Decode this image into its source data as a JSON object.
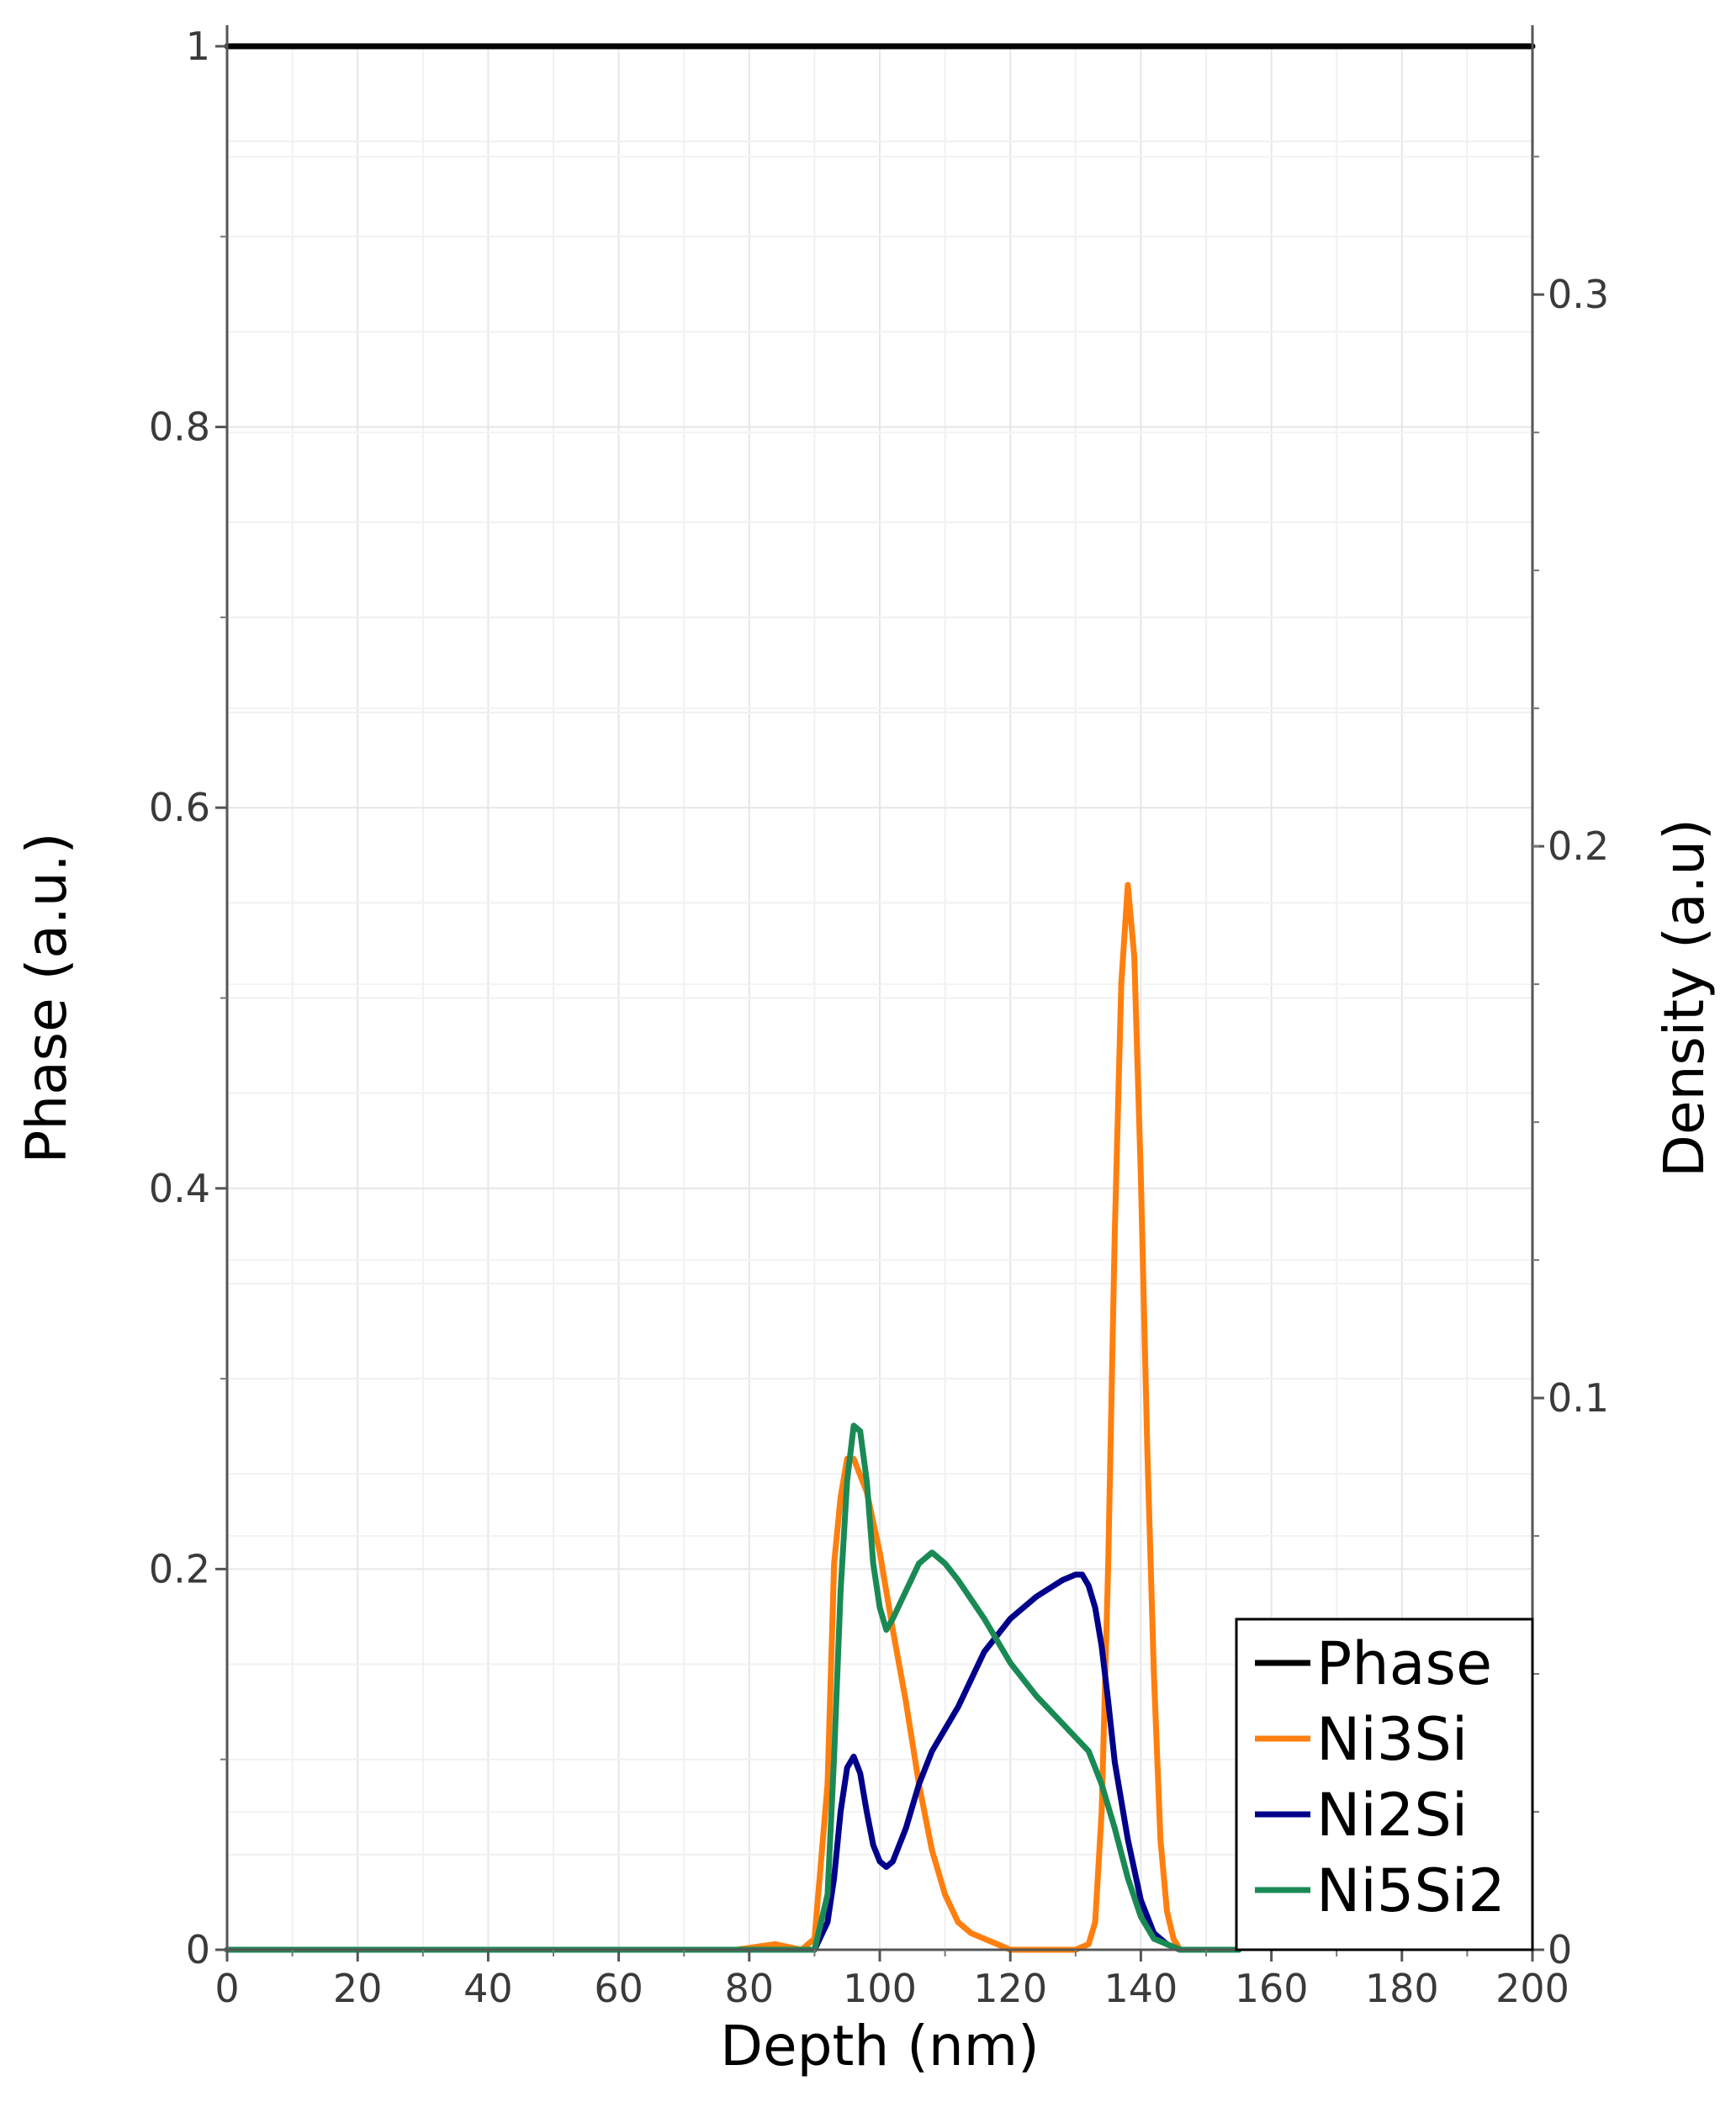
{
  "chart_data": {
    "type": "line",
    "xlabel": "Depth (nm)",
    "ylabel_left": "Phase (a.u.)",
    "ylabel_right": "Density (a.u)",
    "xlim": [
      0,
      200
    ],
    "ylim_left": [
      0,
      1
    ],
    "ylim_right": [
      0,
      0.345
    ],
    "x_ticks": [
      "0",
      "20",
      "40",
      "60",
      "80",
      "100",
      "120",
      "140",
      "160",
      "180",
      "200"
    ],
    "y_left_ticks": [
      "0",
      "0.2",
      "0.4",
      "0.6",
      "0.8",
      "1"
    ],
    "y_right_ticks": [
      "0",
      "0.1",
      "0.2",
      "0.3"
    ],
    "grid": true,
    "legend_position": "bottom-right",
    "series": [
      {
        "name": "Phase",
        "axis": "left",
        "color": "#000000",
        "x": [
          0,
          200
        ],
        "y": [
          1.0,
          1.0
        ]
      },
      {
        "name": "Ni3Si",
        "axis": "right",
        "color": "#ff7f0e",
        "x": [
          0,
          78,
          84,
          88,
          90,
          92,
          93,
          94,
          95,
          96,
          97,
          98,
          100,
          102,
          104,
          106,
          108,
          110,
          112,
          114,
          116,
          118,
          120,
          125,
          130,
          132,
          133,
          134,
          135,
          136,
          137,
          138,
          139,
          140,
          141,
          142,
          143,
          144,
          145,
          146,
          155
        ],
        "y": [
          0,
          0,
          0.001,
          0,
          0.002,
          0.03,
          0.07,
          0.082,
          0.089,
          0.089,
          0.086,
          0.083,
          0.072,
          0.058,
          0.045,
          0.03,
          0.018,
          0.01,
          0.005,
          0.003,
          0.002,
          0.001,
          0,
          0,
          0,
          0.001,
          0.005,
          0.025,
          0.07,
          0.13,
          0.175,
          0.193,
          0.18,
          0.14,
          0.09,
          0.05,
          0.02,
          0.007,
          0.002,
          0,
          0
        ]
      },
      {
        "name": "Ni2Si",
        "axis": "right",
        "color": "#00008b",
        "x": [
          0,
          90,
          92,
          93,
          94,
          95,
          96,
          97,
          98,
          99,
          100,
          101,
          102,
          104,
          106,
          108,
          112,
          116,
          120,
          124,
          128,
          130,
          131,
          132,
          133,
          134,
          135,
          136,
          138,
          140,
          142,
          144,
          146,
          155
        ],
        "y": [
          0,
          0,
          0.005,
          0.013,
          0.025,
          0.033,
          0.035,
          0.032,
          0.025,
          0.019,
          0.016,
          0.015,
          0.016,
          0.022,
          0.03,
          0.036,
          0.044,
          0.054,
          0.06,
          0.064,
          0.067,
          0.068,
          0.068,
          0.066,
          0.062,
          0.055,
          0.045,
          0.034,
          0.02,
          0.009,
          0.003,
          0.001,
          0,
          0
        ]
      },
      {
        "name": "Ni5Si2",
        "axis": "right",
        "color": "#1a8a55",
        "x": [
          0,
          90,
          92,
          93,
          94,
          95,
          96,
          97,
          98,
          99,
          100,
          101,
          102,
          104,
          106,
          108,
          110,
          112,
          116,
          120,
          124,
          128,
          132,
          134,
          136,
          138,
          140,
          142,
          144,
          146,
          155
        ],
        "y": [
          0,
          0,
          0.01,
          0.035,
          0.065,
          0.085,
          0.095,
          0.094,
          0.085,
          0.07,
          0.062,
          0.058,
          0.06,
          0.065,
          0.07,
          0.072,
          0.07,
          0.067,
          0.06,
          0.052,
          0.046,
          0.041,
          0.036,
          0.03,
          0.022,
          0.013,
          0.006,
          0.002,
          0.001,
          0,
          0
        ]
      }
    ]
  }
}
